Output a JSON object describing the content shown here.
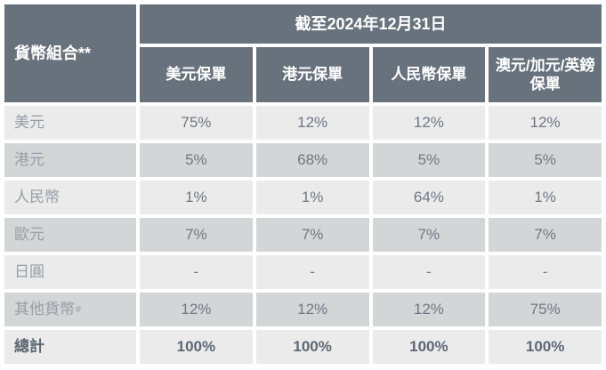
{
  "colors": {
    "header_bg": "#68727c",
    "header_text": "#ffffff",
    "row_light_bg": "#ebebeb",
    "row_dark_bg": "#d4d5d7",
    "label_text": "#979ea6",
    "value_text": "#6e7883",
    "total_text": "#5e6873"
  },
  "table": {
    "corner_header": "貨幣組合**",
    "date_header": "截至2024年12月31日",
    "column_headers": [
      "美元保單",
      "港元保單",
      "人民幣保單",
      "澳元/加元/英鎊保單"
    ],
    "rows": [
      {
        "label": "美元",
        "label_sup": "",
        "values": [
          "75%",
          "12%",
          "12%",
          "12%"
        ]
      },
      {
        "label": "港元",
        "label_sup": "",
        "values": [
          "5%",
          "68%",
          "5%",
          "5%"
        ]
      },
      {
        "label": "人民幣",
        "label_sup": "",
        "values": [
          "1%",
          "1%",
          "64%",
          "1%"
        ]
      },
      {
        "label": "歐元",
        "label_sup": "",
        "values": [
          "7%",
          "7%",
          "7%",
          "7%"
        ]
      },
      {
        "label": "日圓",
        "label_sup": "",
        "values": [
          "-",
          "-",
          "-",
          "-"
        ]
      },
      {
        "label": "其他貨幣",
        "label_sup": "#",
        "values": [
          "12%",
          "12%",
          "12%",
          "75%"
        ]
      },
      {
        "label": "總計",
        "label_sup": "",
        "values": [
          "100%",
          "100%",
          "100%",
          "100%"
        ]
      }
    ]
  }
}
